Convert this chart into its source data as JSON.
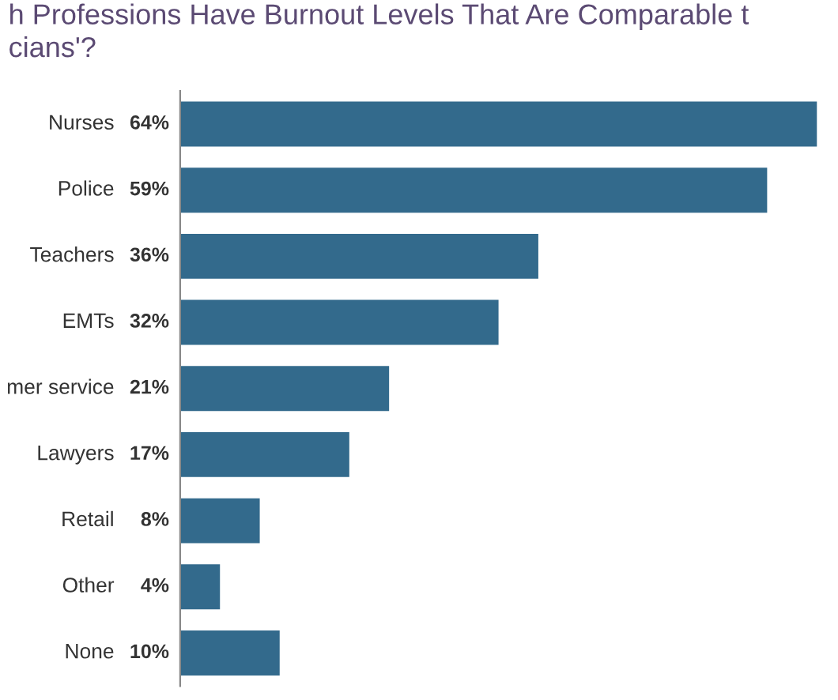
{
  "chart_data": {
    "type": "bar",
    "orientation": "horizontal",
    "title": "h Professions Have Burnout Levels That Are Comparable t\ncians'?",
    "categories": [
      "Nurses",
      "Police",
      "Teachers",
      "EMTs",
      "mer service",
      "Lawyers",
      "Retail",
      "Other",
      "None"
    ],
    "values": [
      64,
      59,
      36,
      32,
      21,
      17,
      8,
      4,
      10
    ],
    "value_labels": [
      "64%",
      "59%",
      "36%",
      "32%",
      "21%",
      "17%",
      "8%",
      "4%",
      "10%"
    ],
    "color": "#336a8c"
  }
}
